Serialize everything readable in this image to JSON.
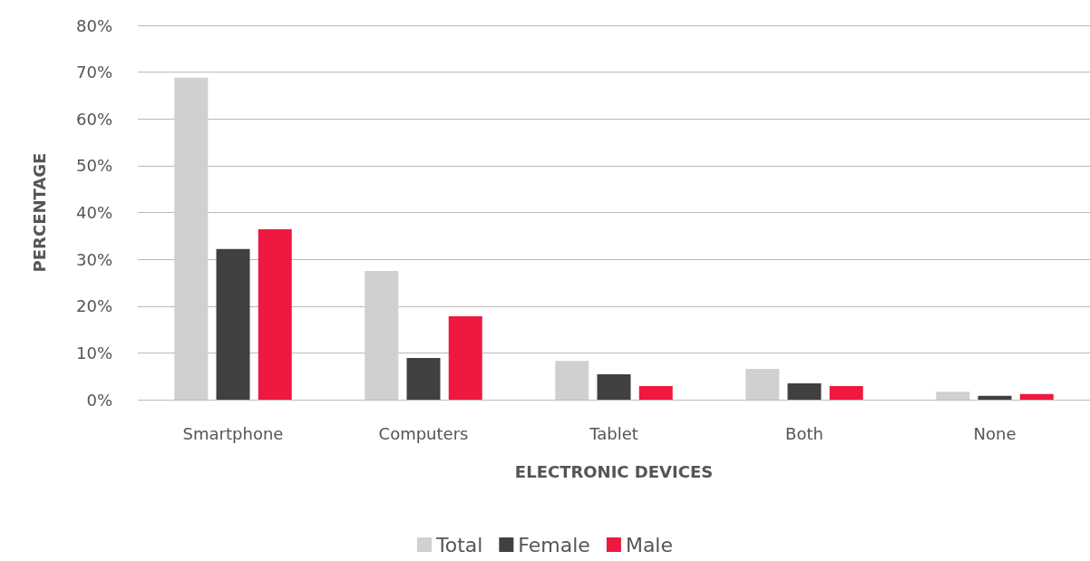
{
  "chart_data": {
    "type": "bar",
    "xlabel": "ELECTRONIC DEVICES",
    "ylabel": "PERCENTAGE",
    "categories": [
      "Smartphone",
      "Computers",
      "Tablet",
      "Both",
      "None"
    ],
    "series": [
      {
        "name": "Total",
        "color": "#d0d0d2",
        "values": [
          68.8,
          27.5,
          8.3,
          6.6,
          1.7
        ]
      },
      {
        "name": "Female",
        "color": "#404040",
        "values": [
          32.2,
          8.9,
          5.4,
          3.5,
          0.8
        ]
      },
      {
        "name": "Male",
        "color": "#ee1840",
        "values": [
          36.4,
          17.8,
          2.9,
          2.9,
          1.2
        ]
      }
    ],
    "ylim": [
      0,
      80
    ],
    "yticks": [
      {
        "value": 0,
        "label": "0%"
      },
      {
        "value": 10,
        "label": "10%"
      },
      {
        "value": 20,
        "label": "20%"
      },
      {
        "value": 30,
        "label": "30%"
      },
      {
        "value": 40,
        "label": "40%"
      },
      {
        "value": 50,
        "label": "50%"
      },
      {
        "value": 60,
        "label": "60%"
      },
      {
        "value": 70,
        "label": "70%"
      },
      {
        "value": 80,
        "label": "80%"
      }
    ],
    "grid": "y",
    "legend": "bottom"
  }
}
